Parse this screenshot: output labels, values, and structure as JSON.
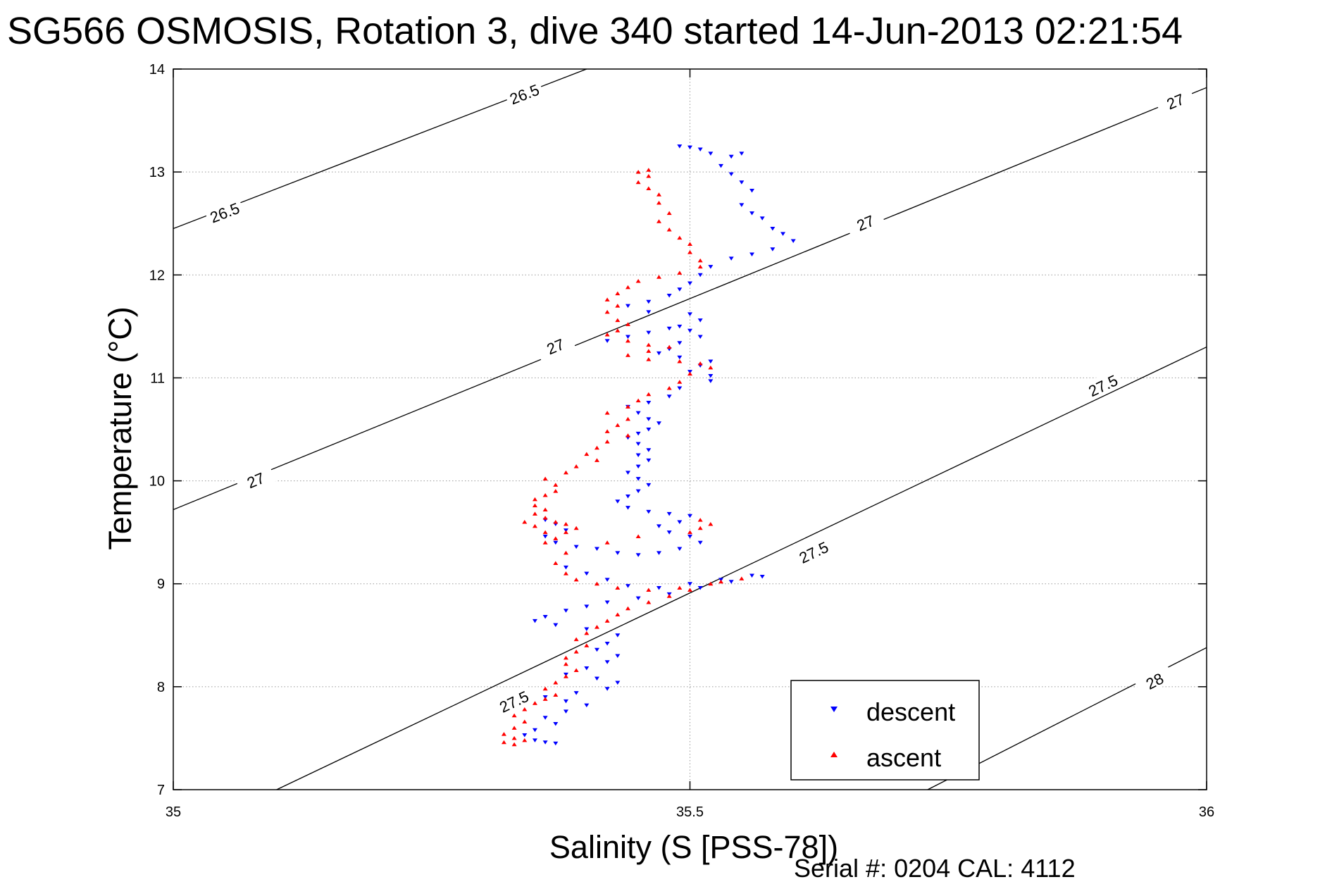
{
  "chart_data": {
    "type": "scatter",
    "title": "SG566 OSMOSIS, Rotation 3, dive 340 started 14-Jun-2013 02:21:54",
    "xlabel": "Salinity (S [PSS-78])",
    "ylabel": "Temperature (°C)",
    "xlim": [
      35,
      36
    ],
    "ylim": [
      7,
      14
    ],
    "x_ticks": [
      35,
      35.5,
      36
    ],
    "y_ticks": [
      7,
      8,
      9,
      10,
      11,
      12,
      13,
      14
    ],
    "x_tick_labels": [
      "35",
      "35.5",
      "36"
    ],
    "y_tick_labels": [
      "7",
      "8",
      "9",
      "10",
      "11",
      "12",
      "13",
      "14"
    ],
    "grid": true,
    "legend_position": "bottom-right",
    "footer": "Serial #: 0204  CAL: 4112",
    "colors": {
      "descent": "#0000ff",
      "ascent": "#ff0000",
      "contour": "#000000",
      "grid": "#999999"
    },
    "contours": [
      {
        "level": "26.5",
        "points": [
          [
            35,
            12.45
          ],
          [
            35.4,
            14.0
          ]
        ],
        "labels": [
          [
            35.05,
            12.6
          ],
          [
            35.34,
            13.75
          ]
        ]
      },
      {
        "level": "27",
        "points": [
          [
            35,
            9.72
          ],
          [
            36,
            13.82
          ]
        ],
        "labels": [
          [
            35.08,
            10.0
          ],
          [
            35.37,
            11.3
          ],
          [
            35.67,
            12.5
          ],
          [
            35.97,
            13.68
          ]
        ]
      },
      {
        "level": "27.5",
        "points": [
          [
            35.1,
            7.0
          ],
          [
            36,
            11.3
          ]
        ],
        "labels": [
          [
            35.33,
            7.85
          ],
          [
            35.62,
            9.3
          ],
          [
            35.9,
            10.92
          ]
        ]
      },
      {
        "level": "28",
        "points": [
          [
            35.73,
            7.0
          ],
          [
            36,
            8.38
          ]
        ],
        "labels": [
          [
            35.95,
            8.05
          ]
        ]
      }
    ],
    "series": [
      {
        "name": "descent",
        "marker": "triangle-down",
        "points": [
          [
            35.49,
            13.25
          ],
          [
            35.5,
            13.24
          ],
          [
            35.51,
            13.22
          ],
          [
            35.52,
            13.18
          ],
          [
            35.54,
            13.15
          ],
          [
            35.55,
            13.18
          ],
          [
            35.53,
            13.06
          ],
          [
            35.54,
            12.98
          ],
          [
            35.55,
            12.9
          ],
          [
            35.56,
            12.82
          ],
          [
            35.55,
            12.68
          ],
          [
            35.56,
            12.6
          ],
          [
            35.57,
            12.55
          ],
          [
            35.58,
            12.45
          ],
          [
            35.59,
            12.4
          ],
          [
            35.6,
            12.33
          ],
          [
            35.58,
            12.25
          ],
          [
            35.56,
            12.2
          ],
          [
            35.54,
            12.16
          ],
          [
            35.52,
            12.08
          ],
          [
            35.51,
            12.0
          ],
          [
            35.5,
            11.92
          ],
          [
            35.49,
            11.86
          ],
          [
            35.48,
            11.8
          ],
          [
            35.46,
            11.74
          ],
          [
            35.44,
            11.7
          ],
          [
            35.46,
            11.64
          ],
          [
            35.5,
            11.62
          ],
          [
            35.51,
            11.56
          ],
          [
            35.49,
            11.5
          ],
          [
            35.5,
            11.46
          ],
          [
            35.51,
            11.4
          ],
          [
            35.49,
            11.34
          ],
          [
            35.48,
            11.28
          ],
          [
            35.47,
            11.24
          ],
          [
            35.49,
            11.2
          ],
          [
            35.52,
            11.16
          ],
          [
            35.51,
            11.12
          ],
          [
            35.5,
            11.06
          ],
          [
            35.52,
            11.02
          ],
          [
            35.52,
            10.97
          ],
          [
            35.42,
            11.36
          ],
          [
            35.44,
            11.4
          ],
          [
            35.46,
            11.44
          ],
          [
            35.48,
            11.48
          ],
          [
            35.49,
            10.9
          ],
          [
            35.48,
            10.82
          ],
          [
            35.46,
            10.76
          ],
          [
            35.44,
            10.72
          ],
          [
            35.45,
            10.66
          ],
          [
            35.46,
            10.6
          ],
          [
            35.47,
            10.56
          ],
          [
            35.46,
            10.5
          ],
          [
            35.45,
            10.46
          ],
          [
            35.44,
            10.42
          ],
          [
            35.45,
            10.36
          ],
          [
            35.46,
            10.3
          ],
          [
            35.45,
            10.25
          ],
          [
            35.46,
            10.2
          ],
          [
            35.45,
            10.14
          ],
          [
            35.44,
            10.08
          ],
          [
            35.45,
            10.02
          ],
          [
            35.46,
            9.96
          ],
          [
            35.45,
            9.9
          ],
          [
            35.44,
            9.85
          ],
          [
            35.43,
            9.8
          ],
          [
            35.44,
            9.74
          ],
          [
            35.46,
            9.7
          ],
          [
            35.48,
            9.68
          ],
          [
            35.5,
            9.66
          ],
          [
            35.49,
            9.6
          ],
          [
            35.47,
            9.56
          ],
          [
            35.48,
            9.5
          ],
          [
            35.5,
            9.46
          ],
          [
            35.51,
            9.4
          ],
          [
            35.49,
            9.34
          ],
          [
            35.47,
            9.3
          ],
          [
            35.45,
            9.28
          ],
          [
            35.43,
            9.3
          ],
          [
            35.41,
            9.34
          ],
          [
            35.39,
            9.36
          ],
          [
            35.37,
            9.4
          ],
          [
            35.36,
            9.46
          ],
          [
            35.38,
            9.52
          ],
          [
            35.37,
            9.58
          ],
          [
            35.36,
            9.62
          ],
          [
            35.38,
            9.16
          ],
          [
            35.4,
            9.1
          ],
          [
            35.42,
            9.04
          ],
          [
            35.44,
            8.98
          ],
          [
            35.47,
            8.96
          ],
          [
            35.5,
            9.0
          ],
          [
            35.53,
            9.04
          ],
          [
            35.56,
            9.08
          ],
          [
            35.57,
            9.07
          ],
          [
            35.54,
            9.02
          ],
          [
            35.51,
            8.96
          ],
          [
            35.48,
            8.9
          ],
          [
            35.45,
            8.86
          ],
          [
            35.42,
            8.82
          ],
          [
            35.4,
            8.78
          ],
          [
            35.38,
            8.74
          ],
          [
            35.36,
            8.68
          ],
          [
            35.35,
            8.64
          ],
          [
            35.37,
            8.6
          ],
          [
            35.4,
            8.56
          ],
          [
            35.43,
            8.5
          ],
          [
            35.42,
            8.42
          ],
          [
            35.41,
            8.36
          ],
          [
            35.43,
            8.3
          ],
          [
            35.42,
            8.24
          ],
          [
            35.4,
            8.18
          ],
          [
            35.38,
            8.12
          ],
          [
            35.41,
            8.08
          ],
          [
            35.43,
            8.04
          ],
          [
            35.42,
            7.98
          ],
          [
            35.39,
            7.94
          ],
          [
            35.36,
            7.9
          ],
          [
            35.38,
            7.86
          ],
          [
            35.4,
            7.82
          ],
          [
            35.38,
            7.76
          ],
          [
            35.36,
            7.7
          ],
          [
            35.37,
            7.64
          ],
          [
            35.35,
            7.58
          ],
          [
            35.34,
            7.53
          ],
          [
            35.35,
            7.48
          ],
          [
            35.36,
            7.46
          ],
          [
            35.37,
            7.45
          ]
        ]
      },
      {
        "name": "ascent",
        "marker": "triangle-up",
        "points": [
          [
            35.46,
            13.02
          ],
          [
            35.45,
            13.0
          ],
          [
            35.46,
            12.96
          ],
          [
            35.45,
            12.9
          ],
          [
            35.46,
            12.84
          ],
          [
            35.47,
            12.78
          ],
          [
            35.47,
            12.7
          ],
          [
            35.48,
            12.6
          ],
          [
            35.47,
            12.52
          ],
          [
            35.48,
            12.44
          ],
          [
            35.49,
            12.36
          ],
          [
            35.5,
            12.3
          ],
          [
            35.5,
            12.22
          ],
          [
            35.51,
            12.14
          ],
          [
            35.51,
            12.08
          ],
          [
            35.49,
            12.02
          ],
          [
            35.47,
            11.98
          ],
          [
            35.45,
            11.94
          ],
          [
            35.44,
            11.88
          ],
          [
            35.43,
            11.82
          ],
          [
            35.42,
            11.76
          ],
          [
            35.43,
            11.7
          ],
          [
            35.42,
            11.64
          ],
          [
            35.43,
            11.56
          ],
          [
            35.44,
            11.52
          ],
          [
            35.43,
            11.46
          ],
          [
            35.42,
            11.42
          ],
          [
            35.44,
            11.36
          ],
          [
            35.46,
            11.32
          ],
          [
            35.48,
            11.3
          ],
          [
            35.46,
            11.26
          ],
          [
            35.44,
            11.22
          ],
          [
            35.46,
            11.18
          ],
          [
            35.49,
            11.16
          ],
          [
            35.51,
            11.14
          ],
          [
            35.52,
            11.1
          ],
          [
            35.5,
            11.04
          ],
          [
            35.49,
            10.96
          ],
          [
            35.48,
            10.9
          ],
          [
            35.46,
            10.84
          ],
          [
            35.45,
            10.78
          ],
          [
            35.44,
            10.72
          ],
          [
            35.42,
            10.66
          ],
          [
            35.44,
            10.6
          ],
          [
            35.43,
            10.54
          ],
          [
            35.42,
            10.48
          ],
          [
            35.44,
            10.44
          ],
          [
            35.42,
            10.38
          ],
          [
            35.41,
            10.32
          ],
          [
            35.4,
            10.26
          ],
          [
            35.41,
            10.2
          ],
          [
            35.39,
            10.14
          ],
          [
            35.38,
            10.08
          ],
          [
            35.36,
            10.02
          ],
          [
            35.37,
            9.96
          ],
          [
            35.37,
            9.9
          ],
          [
            35.36,
            9.86
          ],
          [
            35.35,
            9.82
          ],
          [
            35.35,
            9.76
          ],
          [
            35.36,
            9.72
          ],
          [
            35.35,
            9.68
          ],
          [
            35.36,
            9.64
          ],
          [
            35.37,
            9.6
          ],
          [
            35.38,
            9.58
          ],
          [
            35.39,
            9.54
          ],
          [
            35.38,
            9.5
          ],
          [
            35.37,
            9.44
          ],
          [
            35.36,
            9.4
          ],
          [
            35.34,
            9.6
          ],
          [
            35.35,
            9.56
          ],
          [
            35.36,
            9.5
          ],
          [
            35.51,
            9.62
          ],
          [
            35.52,
            9.58
          ],
          [
            35.51,
            9.54
          ],
          [
            35.5,
            9.5
          ],
          [
            35.45,
            9.46
          ],
          [
            35.42,
            9.4
          ],
          [
            35.38,
            9.3
          ],
          [
            35.37,
            9.2
          ],
          [
            35.38,
            9.1
          ],
          [
            35.39,
            9.04
          ],
          [
            35.41,
            9.0
          ],
          [
            35.43,
            8.96
          ],
          [
            35.46,
            8.94
          ],
          [
            35.49,
            8.96
          ],
          [
            35.52,
            9.0
          ],
          [
            35.55,
            9.05
          ],
          [
            35.53,
            9.02
          ],
          [
            35.5,
            8.94
          ],
          [
            35.48,
            8.88
          ],
          [
            35.46,
            8.82
          ],
          [
            35.44,
            8.76
          ],
          [
            35.43,
            8.7
          ],
          [
            35.42,
            8.64
          ],
          [
            35.41,
            8.58
          ],
          [
            35.4,
            8.52
          ],
          [
            35.39,
            8.46
          ],
          [
            35.4,
            8.4
          ],
          [
            35.39,
            8.34
          ],
          [
            35.38,
            8.28
          ],
          [
            35.38,
            8.22
          ],
          [
            35.39,
            8.16
          ],
          [
            35.38,
            8.1
          ],
          [
            35.37,
            8.04
          ],
          [
            35.36,
            7.98
          ],
          [
            35.37,
            7.92
          ],
          [
            35.36,
            7.88
          ],
          [
            35.35,
            7.84
          ],
          [
            35.34,
            7.78
          ],
          [
            35.33,
            7.72
          ],
          [
            35.34,
            7.66
          ],
          [
            35.33,
            7.6
          ],
          [
            35.32,
            7.54
          ],
          [
            35.33,
            7.5
          ],
          [
            35.34,
            7.48
          ],
          [
            35.32,
            7.46
          ],
          [
            35.33,
            7.44
          ]
        ]
      }
    ]
  }
}
